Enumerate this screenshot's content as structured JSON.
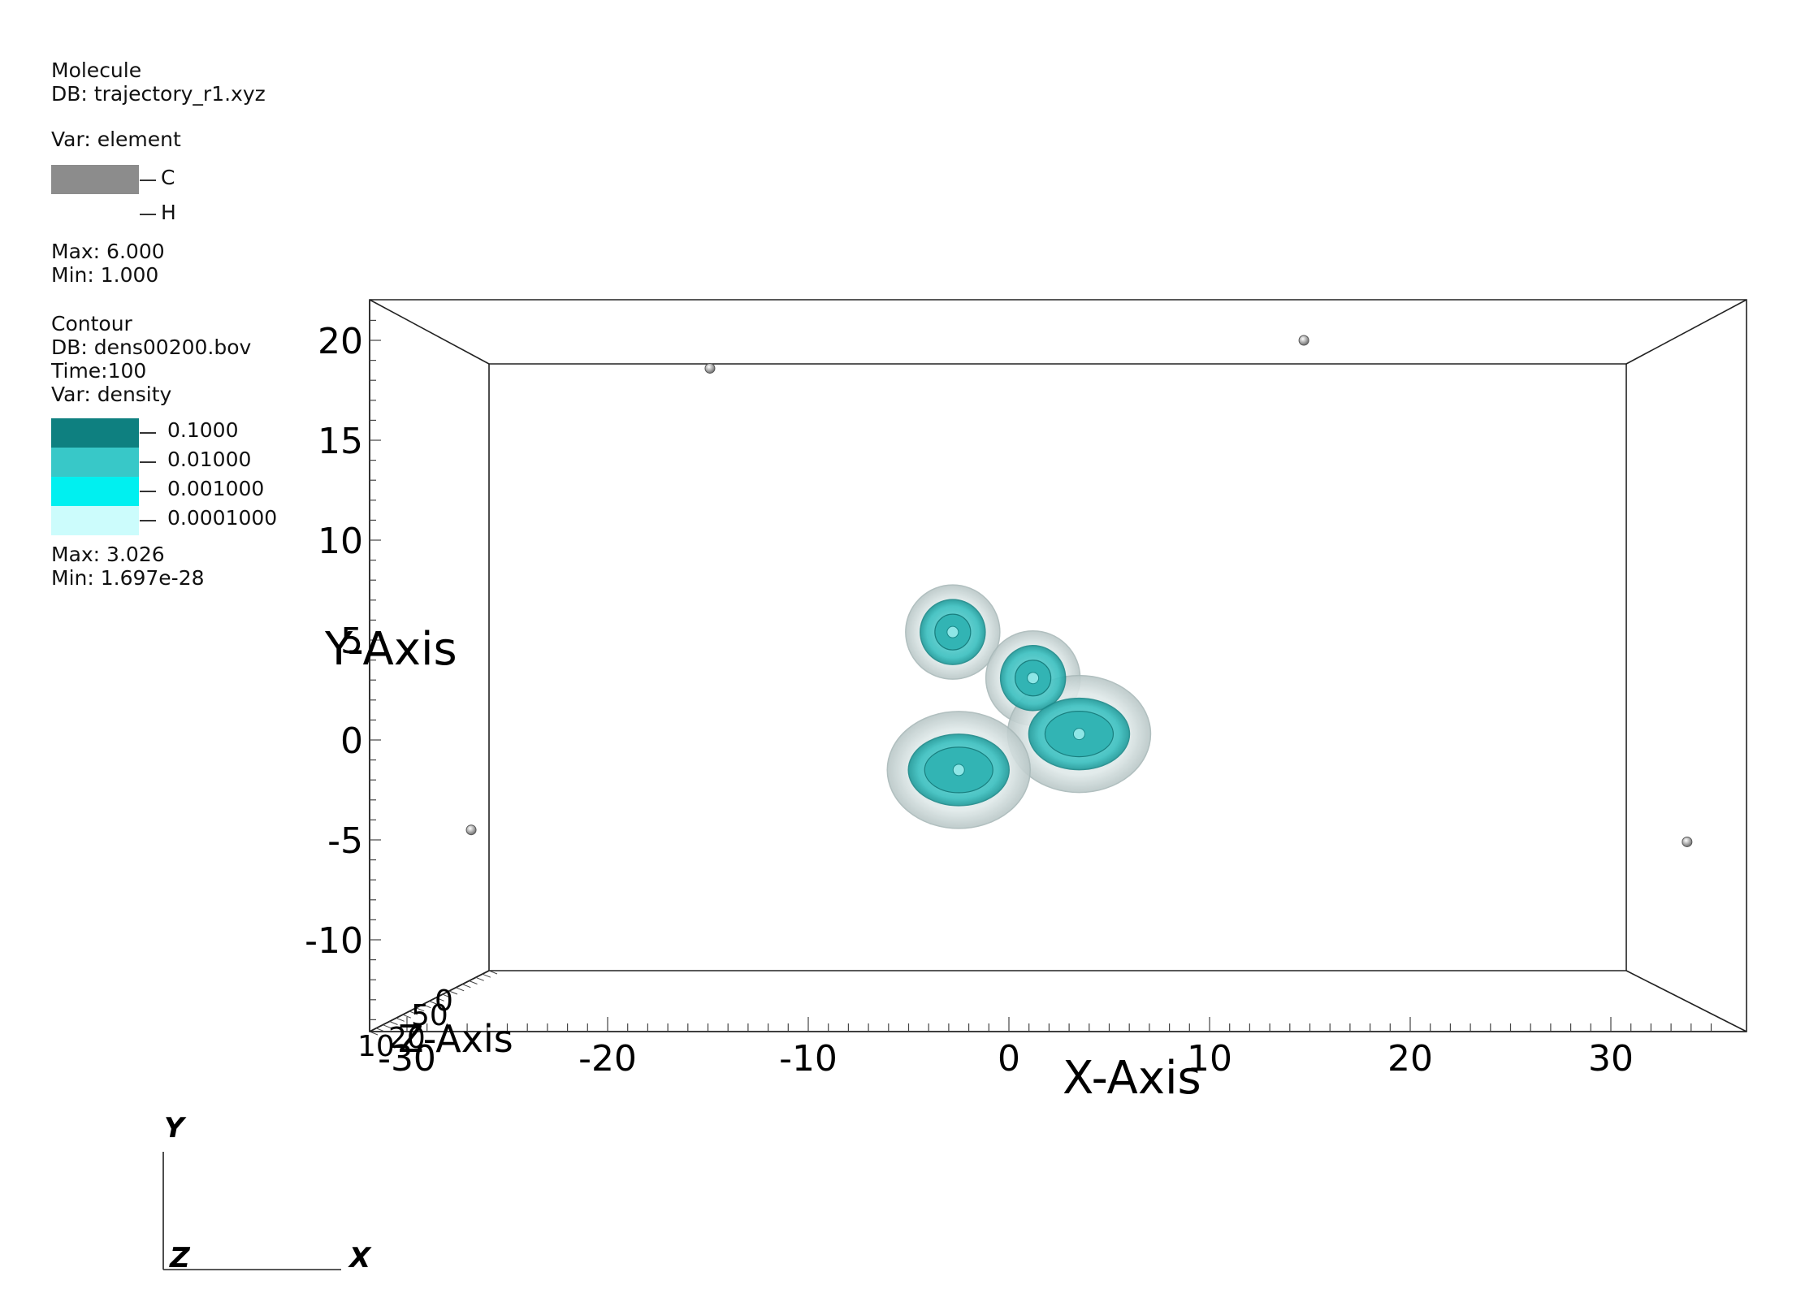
{
  "legend_molecule": {
    "title": "Molecule",
    "db": "DB: trajectory_r1.xyz",
    "var": "Var: element",
    "entries": [
      {
        "label": "C",
        "color": "#8c8c8c"
      },
      {
        "label": "H",
        "color": "#ffffff"
      }
    ],
    "max": "Max:  6.000",
    "min": "Min:  1.000"
  },
  "legend_contour": {
    "title": "Contour",
    "db": "DB: dens00200.bov",
    "time": "Time:100",
    "var": "Var: density",
    "levels": [
      {
        "label": "0.1000",
        "color": "#0e8080"
      },
      {
        "label": "0.01000",
        "color": "#38c8c8"
      },
      {
        "label": "0.001000",
        "color": "#00f0f0"
      },
      {
        "label": "0.0001000",
        "color": "#ccfcfc"
      }
    ],
    "max": "Max:  3.026",
    "min": "Min:  1.697e-28"
  },
  "chart_data": {
    "type": "scatter",
    "title": "",
    "xlabel": "X-Axis",
    "ylabel": "Y-Axis",
    "zlabel": "Z-Axis",
    "xlim": [
      -30,
      36
    ],
    "ylim": [
      -14.5,
      22
    ],
    "x_ticks": [
      -30,
      -20,
      -10,
      0,
      10,
      20,
      30
    ],
    "y_ticks": [
      -10,
      -5,
      0,
      5,
      10,
      15,
      20
    ],
    "z_tick_labels": [
      "10",
      "20",
      "50",
      "0"
    ],
    "points": [
      {
        "x": -14.9,
        "y": 18.6
      },
      {
        "x": 14.7,
        "y": 20.0
      },
      {
        "x": -26.8,
        "y": -4.5
      },
      {
        "x": 33.8,
        "y": -5.1
      }
    ],
    "density_blobs": [
      {
        "x": -2.8,
        "y": 5.4
      },
      {
        "x": 1.2,
        "y": 3.1
      },
      {
        "x": 3.5,
        "y": 0.3
      },
      {
        "x": -2.5,
        "y": -1.5
      }
    ]
  },
  "triad": {
    "y": "Y",
    "z": "Z",
    "x": "X"
  }
}
